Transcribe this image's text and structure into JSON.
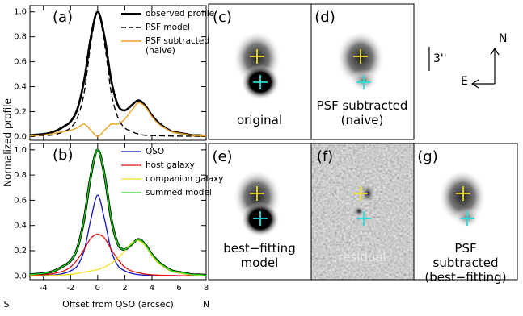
{
  "chart_data": [
    {
      "type": "line",
      "panel_label": "(a)",
      "x": [
        -5,
        -4.5,
        -4,
        -3.5,
        -3,
        -2.5,
        -2,
        -1.5,
        -1,
        -0.5,
        0,
        0.5,
        1,
        1.5,
        2,
        2.5,
        3,
        3.5,
        4,
        4.5,
        5,
        5.5,
        6,
        6.5,
        7,
        7.5,
        8
      ],
      "xlim": [
        -5,
        8
      ],
      "xticks": [
        -4,
        -2,
        0,
        2,
        4,
        6,
        8
      ],
      "show_xtick_labels": false,
      "ylim": [
        -0.03,
        1.05
      ],
      "yticks": [
        {
          "value": 0,
          "label": "0.0"
        },
        {
          "value": 0.2,
          "label": "0.2"
        },
        {
          "value": 0.4,
          "label": "0.4"
        },
        {
          "value": 0.6,
          "label": "0.6"
        },
        {
          "value": 0.8,
          "label": "0.8"
        },
        {
          "value": 1,
          "label": "1.0"
        }
      ],
      "legend": "upper right",
      "series": [
        {
          "name": "observed profile",
          "color": "#000000",
          "width": 2.6,
          "dash": "solid",
          "values": [
            0.01,
            0.015,
            0.02,
            0.03,
            0.05,
            0.08,
            0.12,
            0.22,
            0.45,
            0.8,
            1.0,
            0.8,
            0.45,
            0.25,
            0.21,
            0.25,
            0.29,
            0.25,
            0.17,
            0.11,
            0.07,
            0.04,
            0.03,
            0.02,
            0.01,
            0.01,
            0.005
          ]
        },
        {
          "name": "PSF model",
          "color": "#000000",
          "width": 1.4,
          "dash": "dashed",
          "values": [
            0.005,
            0.006,
            0.008,
            0.01,
            0.02,
            0.04,
            0.07,
            0.15,
            0.35,
            0.75,
            1.0,
            0.75,
            0.35,
            0.15,
            0.07,
            0.04,
            0.02,
            0.01,
            0.008,
            0.006,
            0.005,
            0.004,
            0.003,
            0.003,
            0.002,
            0.002,
            0.002
          ]
        },
        {
          "name": "PSF subtracted\n(naive)",
          "color": "#f0a020",
          "width": 1.4,
          "dash": "solid",
          "values": [
            0.005,
            0.009,
            0.012,
            0.02,
            0.03,
            0.04,
            0.05,
            0.07,
            0.1,
            0.05,
            0.0,
            0.05,
            0.1,
            0.1,
            0.14,
            0.21,
            0.27,
            0.24,
            0.16,
            0.1,
            0.065,
            0.036,
            0.027,
            0.017,
            0.008,
            0.008,
            0.003
          ]
        }
      ]
    },
    {
      "type": "line",
      "panel_label": "(b)",
      "x": [
        -5,
        -4.5,
        -4,
        -3.5,
        -3,
        -2.5,
        -2,
        -1.5,
        -1,
        -0.5,
        0,
        0.5,
        1,
        1.5,
        2,
        2.5,
        3,
        3.5,
        4,
        4.5,
        5,
        5.5,
        6,
        6.5,
        7,
        7.5,
        8
      ],
      "xlim": [
        -5,
        8
      ],
      "xticks": [
        -4,
        -2,
        0,
        2,
        4,
        6,
        8
      ],
      "show_xtick_labels": true,
      "xlabel": "Offset from QSO (arcsec)",
      "x_left_label": "S",
      "x_right_label": "N",
      "ylabel": "Normalized profile",
      "ylim": [
        -0.03,
        1.05
      ],
      "yticks": [
        {
          "value": 0,
          "label": "0.0"
        },
        {
          "value": 0.2,
          "label": "0.2"
        },
        {
          "value": 0.4,
          "label": "0.4"
        },
        {
          "value": 0.6,
          "label": "0.6"
        },
        {
          "value": 0.8,
          "label": "0.8"
        },
        {
          "value": 1,
          "label": "1.0"
        }
      ],
      "legend": "upper right",
      "series": [
        {
          "color": "#000000",
          "width": 3,
          "dash": "solid",
          "values": [
            0.01,
            0.015,
            0.02,
            0.03,
            0.05,
            0.08,
            0.12,
            0.22,
            0.45,
            0.8,
            1.0,
            0.8,
            0.45,
            0.25,
            0.21,
            0.25,
            0.29,
            0.25,
            0.17,
            0.11,
            0.07,
            0.04,
            0.03,
            0.02,
            0.01,
            0.01,
            0.005
          ]
        },
        {
          "name": "QSO",
          "color": "#1010c0",
          "width": 1.3,
          "dash": "solid",
          "values": [
            0.002,
            0.003,
            0.004,
            0.006,
            0.01,
            0.02,
            0.04,
            0.08,
            0.2,
            0.45,
            0.64,
            0.45,
            0.2,
            0.08,
            0.04,
            0.02,
            0.01,
            0.006,
            0.004,
            0.003,
            0.002,
            0.002,
            0.001,
            0.001,
            0.001,
            0.001,
            0.001
          ]
        },
        {
          "name": "host galaxy",
          "color": "#e01010",
          "width": 1.3,
          "dash": "solid",
          "values": [
            0.004,
            0.006,
            0.009,
            0.015,
            0.025,
            0.04,
            0.07,
            0.13,
            0.21,
            0.3,
            0.33,
            0.3,
            0.21,
            0.13,
            0.07,
            0.04,
            0.025,
            0.015,
            0.009,
            0.006,
            0.004,
            0.003,
            0.002,
            0.002,
            0.001,
            0.001,
            0.001
          ]
        },
        {
          "name": "companion galaxy",
          "color": "#f5e020",
          "width": 1.3,
          "dash": "solid",
          "values": [
            0,
            0,
            0,
            0.003,
            0.005,
            0.008,
            0.012,
            0.02,
            0.03,
            0.04,
            0.05,
            0.07,
            0.1,
            0.14,
            0.2,
            0.26,
            0.28,
            0.24,
            0.16,
            0.1,
            0.065,
            0.035,
            0.025,
            0.015,
            0.008,
            0.006,
            0.003
          ]
        },
        {
          "name": "summed model",
          "color": "#10e010",
          "width": 1.3,
          "dash": "solid",
          "values": [
            0.01,
            0.015,
            0.02,
            0.03,
            0.05,
            0.08,
            0.12,
            0.22,
            0.45,
            0.8,
            1.0,
            0.8,
            0.45,
            0.25,
            0.21,
            0.25,
            0.29,
            0.25,
            0.17,
            0.11,
            0.07,
            0.04,
            0.03,
            0.02,
            0.01,
            0.01,
            0.005
          ]
        }
      ]
    }
  ],
  "images": [
    {
      "panel_label": "(c)",
      "caption": "original"
    },
    {
      "panel_label": "(d)",
      "caption": "PSF subtracted\n(naive)"
    },
    {
      "panel_label": "(e)",
      "caption": "best−fitting\nmodel"
    },
    {
      "panel_label": "(f)",
      "caption": "residual"
    },
    {
      "panel_label": "(g)",
      "caption": "PSF subtracted\n(best−fitting)"
    }
  ],
  "compass": {
    "scale": "3''",
    "north": "N",
    "east": "E"
  }
}
